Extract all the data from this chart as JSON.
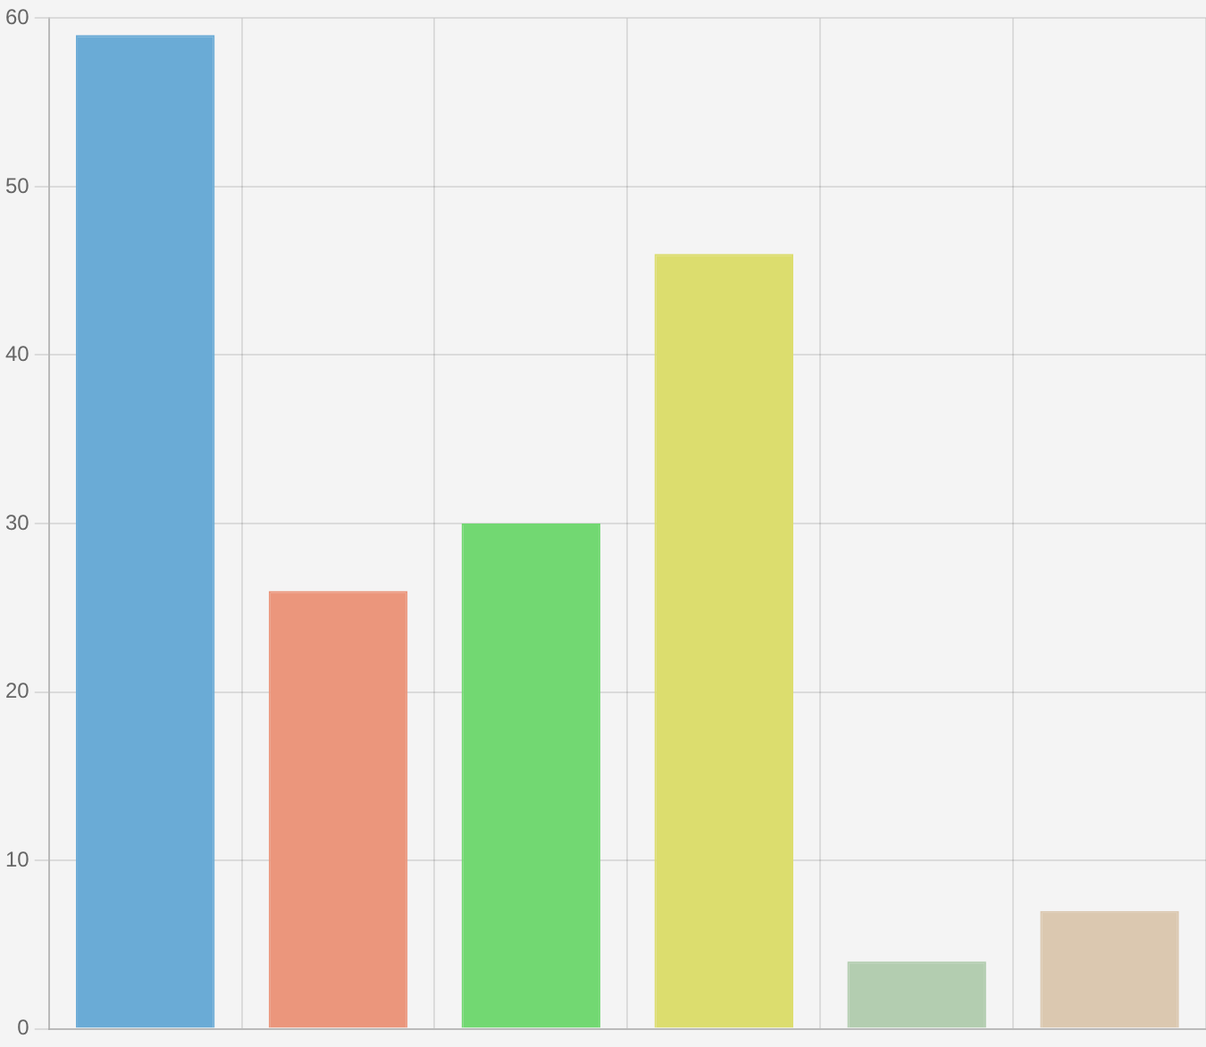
{
  "chart_data": {
    "type": "bar",
    "categories": [
      null,
      null,
      null,
      null,
      null,
      null
    ],
    "values": [
      59,
      26,
      30,
      46,
      4,
      7
    ],
    "colors": [
      "#6aabd6",
      "#eb967c",
      "#72d872",
      "#dcdd6e",
      "#b3cdb0",
      "#dbc8b0"
    ],
    "ylim": [
      0,
      60
    ],
    "yticks": [
      0,
      10,
      20,
      30,
      40,
      50,
      60
    ],
    "grid": true,
    "tick_labels": "y"
  }
}
